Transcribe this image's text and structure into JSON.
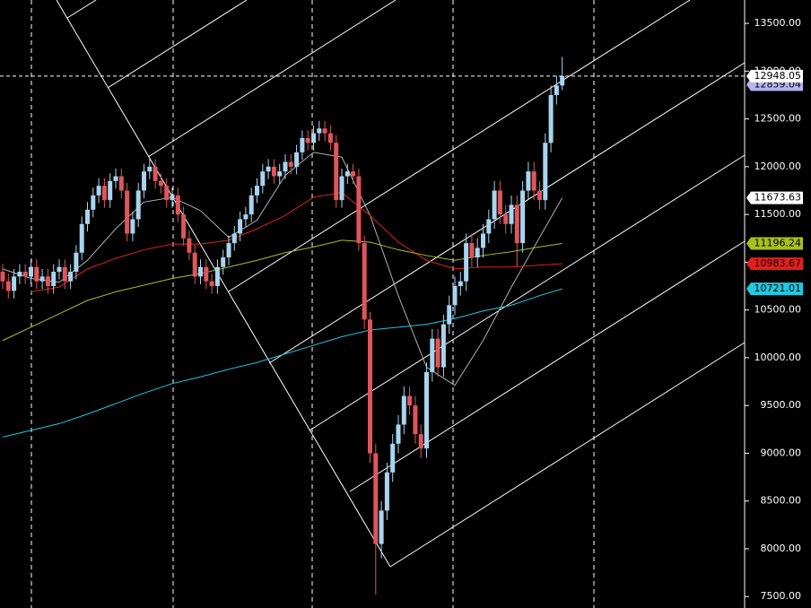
{
  "chart_data": {
    "type": "candlestick",
    "x": [
      0,
      1,
      2,
      3,
      4,
      5,
      6,
      7,
      8,
      9,
      10,
      11,
      12,
      13,
      14,
      15,
      16,
      17,
      18,
      19,
      20,
      21,
      22,
      23,
      24,
      25,
      26,
      27,
      28,
      29,
      30,
      31,
      32,
      33,
      34,
      35,
      36,
      37,
      38,
      39,
      40,
      41,
      42,
      43,
      44,
      45,
      46,
      47,
      48,
      49,
      50,
      51,
      52,
      53,
      54,
      55,
      56,
      57,
      58,
      59,
      60,
      61,
      62,
      63,
      64,
      65,
      66,
      67,
      68,
      69,
      70,
      71,
      72,
      73,
      74,
      75,
      76,
      77,
      78,
      79,
      80,
      81,
      82,
      83,
      84,
      85,
      86,
      87,
      88,
      89,
      90,
      91,
      92,
      93,
      94,
      95,
      96,
      97,
      98,
      99
    ],
    "open": [
      10900,
      10800,
      10700,
      10850,
      10900,
      10850,
      10950,
      10800,
      10850,
      10750,
      10900,
      10950,
      10800,
      10900,
      11100,
      11400,
      11550,
      11700,
      11800,
      11650,
      11850,
      11900,
      11750,
      11300,
      11450,
      11750,
      11950,
      12000,
      11850,
      11800,
      11650,
      11700,
      11500,
      11250,
      11100,
      10850,
      10950,
      10800,
      10750,
      10950,
      11050,
      11200,
      11300,
      11450,
      11500,
      11700,
      11800,
      11950,
      12000,
      11900,
      11950,
      12050,
      12000,
      12150,
      12300,
      12250,
      12350,
      12400,
      12350,
      12250,
      11650,
      11900,
      11950,
      11900,
      11200,
      10400,
      9000,
      8050,
      8400,
      8800,
      9100,
      9300,
      9600,
      9500,
      9200,
      9050,
      9850,
      10200,
      9900,
      10350,
      10550,
      10750,
      10800,
      11200,
      11050,
      11150,
      11300,
      11450,
      11750,
      11500,
      11400,
      11600,
      11200,
      11750,
      11950,
      11750,
      11650,
      12250,
      12750,
      12850
    ],
    "high": [
      10980,
      10880,
      10930,
      10980,
      10980,
      11030,
      11030,
      10930,
      10930,
      10980,
      11030,
      11030,
      10980,
      11180,
      11480,
      11630,
      11780,
      11880,
      11880,
      11930,
      11980,
      11980,
      11830,
      11530,
      11830,
      12030,
      12080,
      12080,
      11930,
      11880,
      11780,
      11780,
      11580,
      11330,
      11180,
      11030,
      11030,
      10880,
      11030,
      11130,
      11280,
      11380,
      11530,
      11580,
      11780,
      11880,
      12030,
      12080,
      12080,
      12030,
      12130,
      12130,
      12230,
      12380,
      12380,
      12430,
      12480,
      12480,
      12430,
      12330,
      11980,
      12030,
      12030,
      11980,
      11280,
      10480,
      9100,
      8500,
      8900,
      9200,
      9400,
      9700,
      9700,
      9600,
      9300,
      9950,
      10300,
      10300,
      10450,
      10650,
      10850,
      10900,
      11300,
      11300,
      11250,
      11400,
      11550,
      11850,
      11850,
      11600,
      11700,
      11700,
      11850,
      12050,
      12050,
      11850,
      12350,
      12850,
      12950,
      13150
    ],
    "low": [
      10720,
      10620,
      10620,
      10770,
      10770,
      10770,
      10720,
      10720,
      10670,
      10670,
      10820,
      10720,
      10720,
      10820,
      11020,
      11320,
      11470,
      11620,
      11570,
      11570,
      11770,
      11670,
      11220,
      11220,
      11370,
      11670,
      11870,
      11770,
      11720,
      11570,
      11570,
      11420,
      11170,
      11020,
      10770,
      10770,
      10720,
      10670,
      10670,
      10870,
      10970,
      11120,
      11220,
      11370,
      11420,
      11620,
      11720,
      11870,
      11820,
      11820,
      11870,
      11920,
      11920,
      12070,
      12170,
      12170,
      12270,
      12270,
      12170,
      11570,
      11570,
      11820,
      11820,
      11120,
      10300,
      8900,
      7520,
      7900,
      8300,
      8700,
      9000,
      9200,
      9400,
      9100,
      8950,
      8950,
      9750,
      9800,
      9800,
      10250,
      10450,
      10650,
      10700,
      10950,
      10950,
      11050,
      11200,
      11350,
      11400,
      11300,
      11300,
      10950,
      11100,
      11650,
      11650,
      11550,
      11550,
      12150,
      12650,
      12800
    ],
    "close": [
      10800,
      10700,
      10850,
      10900,
      10850,
      10950,
      10800,
      10850,
      10750,
      10900,
      10950,
      10800,
      10900,
      11100,
      11400,
      11550,
      11700,
      11800,
      11650,
      11850,
      11900,
      11750,
      11300,
      11450,
      11750,
      11950,
      12000,
      11850,
      11800,
      11650,
      11700,
      11500,
      11250,
      11100,
      10850,
      10950,
      10800,
      10750,
      10950,
      11050,
      11200,
      11300,
      11450,
      11500,
      11700,
      11800,
      11950,
      12000,
      11900,
      11950,
      12050,
      12000,
      12150,
      12300,
      12250,
      12350,
      12400,
      12350,
      12250,
      11650,
      11900,
      11950,
      11900,
      11200,
      10400,
      9000,
      8050,
      8400,
      8800,
      9100,
      9300,
      9600,
      9500,
      9200,
      9050,
      9850,
      10200,
      9900,
      10350,
      10550,
      10750,
      10800,
      11200,
      11050,
      11150,
      11300,
      11450,
      11750,
      11500,
      11400,
      11600,
      11200,
      11750,
      11950,
      11750,
      11650,
      12250,
      12750,
      12850,
      12948.05
    ],
    "color_up": "#a9d4ee",
    "color_down": "#e0555a",
    "last_price_color": "#ffffff",
    "reference_price": 12859.04,
    "reference_color": "#b4b4f0",
    "series": [
      {
        "color": "#b0b0b0",
        "x": [
          0,
          5,
          10,
          15,
          20,
          25,
          30,
          35,
          40,
          45,
          50,
          55,
          60,
          65,
          70,
          75,
          80,
          85,
          90,
          95,
          99
        ],
        "values": [
          10930,
          10830,
          10790,
          11020,
          11350,
          11630,
          11680,
          11540,
          11260,
          11440,
          11910,
          12150,
          12100,
          11490,
          10650,
          9900,
          9710,
          10180,
          10740,
          11260,
          11673.63
        ]
      },
      {
        "color": "#e02020",
        "x": [
          0,
          5,
          10,
          15,
          20,
          25,
          30,
          35,
          40,
          45,
          50,
          55,
          60,
          65,
          70,
          75,
          80,
          85,
          90,
          95,
          99
        ],
        "values": [
          null,
          10690,
          10740,
          10930,
          11040,
          11130,
          11190,
          11190,
          11230,
          11350,
          11490,
          11680,
          11730,
          11490,
          11210,
          11020,
          10930,
          10950,
          10950,
          10970,
          10983.67
        ]
      },
      {
        "color": "#a8c020",
        "x": [
          0,
          5,
          10,
          15,
          20,
          25,
          30,
          35,
          40,
          45,
          50,
          55,
          60,
          65,
          70,
          75,
          80,
          85,
          90,
          95,
          99
        ],
        "values": [
          10180,
          10320,
          10460,
          10600,
          10690,
          10760,
          10830,
          10880,
          10950,
          11020,
          11100,
          11160,
          11230,
          11210,
          11130,
          11070,
          11020,
          11070,
          11110,
          11160,
          11196.24
        ]
      },
      {
        "color": "#20c8e0",
        "x": [
          0,
          5,
          10,
          15,
          20,
          25,
          30,
          35,
          40,
          45,
          50,
          55,
          60,
          65,
          70,
          75,
          80,
          85,
          90,
          95,
          99
        ],
        "values": [
          9170,
          9240,
          9310,
          9410,
          9520,
          9630,
          9730,
          9800,
          9880,
          9950,
          10040,
          10130,
          10220,
          10290,
          10320,
          10350,
          10410,
          10490,
          10550,
          10650,
          10721.01
        ]
      }
    ],
    "ylim": [
      7380,
      13745
    ],
    "yticks": [
      {
        "value": 7500,
        "label": "7500.00"
      },
      {
        "value": 8000,
        "label": "8000.00"
      },
      {
        "value": 8500,
        "label": "8500.00"
      },
      {
        "value": 9000,
        "label": "9000.00"
      },
      {
        "value": 9500,
        "label": "9500.00"
      },
      {
        "value": 10000,
        "label": "10000.00"
      },
      {
        "value": 10500,
        "label": "10500.00"
      },
      {
        "value": 11000,
        "label": "11000.00"
      },
      {
        "value": 11500,
        "label": "11500.00"
      },
      {
        "value": 12000,
        "label": "12000.00"
      },
      {
        "value": 12500,
        "label": "12500.00"
      },
      {
        "value": 13000,
        "label": "13000.00"
      },
      {
        "value": 13500,
        "label": "13500.00"
      }
    ]
  }
}
